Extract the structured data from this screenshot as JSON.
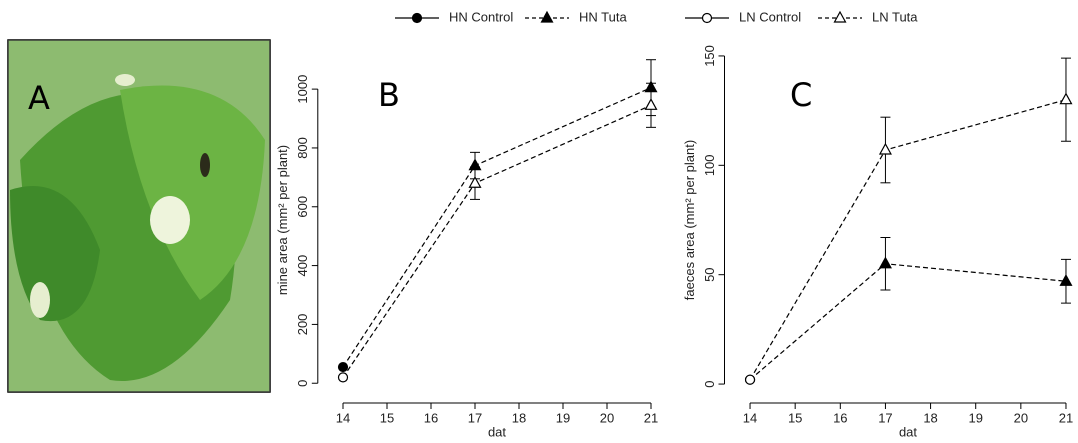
{
  "panel_a": {
    "label": "A"
  },
  "legend": [
    {
      "label": "HN Control",
      "marker": "filled-circle",
      "line": "solid"
    },
    {
      "label": "HN Tuta",
      "marker": "filled-triangle",
      "line": "dashed"
    },
    {
      "label": "LN Control",
      "marker": "open-circle",
      "line": "solid"
    },
    {
      "label": "LN Tuta",
      "marker": "open-triangle",
      "line": "dashed"
    }
  ],
  "chart_data": [
    {
      "type": "line",
      "panel_label": "B",
      "x_label": "dat",
      "y_label": "mine area (mm² per plant)",
      "x": [
        14,
        17,
        21
      ],
      "xlim": [
        13.7,
        21.2
      ],
      "xticks": [
        14,
        15,
        16,
        17,
        18,
        19,
        20,
        21
      ],
      "ylim": [
        -40,
        1150
      ],
      "yticks": [
        0,
        200,
        400,
        600,
        800,
        1000
      ],
      "line_style": "dashed",
      "series": [
        {
          "color": "#000000",
          "values": [
            55,
            740,
            1005
          ],
          "errors": [
            null,
            45,
            95
          ],
          "markers": [
            "filled-circle",
            "filled-triangle",
            "filled-triangle"
          ]
        },
        {
          "color": "#000000",
          "values": [
            20,
            680,
            945
          ],
          "errors": [
            null,
            55,
            75
          ],
          "markers": [
            "open-circle",
            "open-triangle",
            "open-triangle"
          ]
        }
      ]
    },
    {
      "type": "line",
      "panel_label": "C",
      "x_label": "dat",
      "y_label": "faeces area (mm² per plant)",
      "x": [
        14,
        17,
        21
      ],
      "xlim": [
        13.7,
        21.2
      ],
      "xticks": [
        14,
        15,
        16,
        17,
        18,
        19,
        20,
        21
      ],
      "ylim": [
        -5,
        155
      ],
      "yticks": [
        0,
        50,
        100,
        150
      ],
      "line_style": "dashed",
      "series": [
        {
          "color": "#000000",
          "values": [
            2,
            55,
            47
          ],
          "errors": [
            null,
            12,
            10
          ],
          "markers": [
            "filled-circle",
            "filled-triangle",
            "filled-triangle"
          ]
        },
        {
          "color": "#000000",
          "values": [
            2,
            107,
            130
          ],
          "errors": [
            null,
            15,
            19
          ],
          "markers": [
            "open-circle",
            "open-triangle",
            "open-triangle"
          ]
        }
      ]
    }
  ]
}
